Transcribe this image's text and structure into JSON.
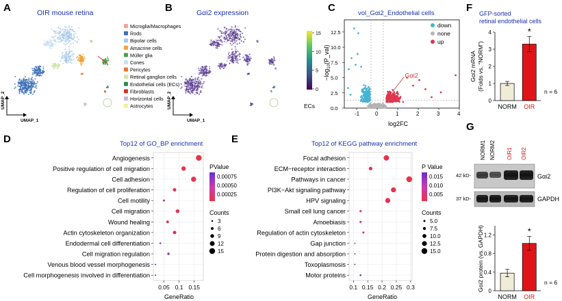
{
  "panels": {
    "A": {
      "letter": "A",
      "title": "OIR mouse retina",
      "axis_x": "UMAP_1",
      "axis_y": "UMAP_2"
    },
    "B": {
      "letter": "B",
      "title": "Gαi2 expression",
      "axis_x": "UMAP_1",
      "axis_y": "UMAP_2",
      "colorbar_ticks": [
        "15",
        "10",
        "5",
        "0"
      ],
      "ec_label": "ECs"
    },
    "C": {
      "letter": "C"
    },
    "D": {
      "letter": "D"
    },
    "E": {
      "letter": "E"
    },
    "F": {
      "letter": "F",
      "title_lines": [
        "GFP-sorted",
        "retinal endothelial cells"
      ]
    },
    "G": {
      "letter": "G",
      "lanes": [
        "NORM1",
        "NORM2",
        "OIR1",
        "OIR2"
      ],
      "markers": [
        "42 kD-",
        "37 kD-"
      ],
      "bands": [
        "Gαi2",
        "GAPDH"
      ]
    }
  },
  "legend_A": {
    "items": [
      {
        "label": "Microglia/Macrophages",
        "color": "#f2a49a"
      },
      {
        "label": "Rods",
        "color": "#3b6fb6"
      },
      {
        "label": "Bipolar cells",
        "color": "#a9c9e8"
      },
      {
        "label": "Amacrine cells",
        "color": "#f0a33a"
      },
      {
        "label": "Müller glia",
        "color": "#4da04a"
      },
      {
        "label": "Cones",
        "color": "#c9e0f2"
      },
      {
        "label": "Pericytes",
        "color": "#e8772e"
      },
      {
        "label": "Retinal ganglion cells",
        "color": "#cfe6a6"
      },
      {
        "label": "Endothelial cells (ECs)",
        "color": "#2f8a52"
      },
      {
        "label": "Fibroblasts",
        "color": "#d6342c"
      },
      {
        "label": "Horizontal cells",
        "color": "#c9b7d9"
      },
      {
        "label": "Astrocytes",
        "color": "#f6ee9a"
      }
    ]
  },
  "chart_data": [
    {
      "id": "volcano",
      "type": "scatter",
      "title": "vol_Gαi2_Endothelial cells",
      "xlabel": "log2FC",
      "ylabel_parts": {
        "pre": "−log",
        "sub": "10",
        "post": "(P_val)"
      },
      "xlim": [
        -1.6,
        4.0
      ],
      "ylim": [
        0,
        14.5
      ],
      "xticks": [
        "-1",
        "0",
        "1",
        "2",
        "3",
        "4"
      ],
      "yticks": [
        "0.0",
        "2.5",
        "5.0",
        "7.5",
        "10.0",
        "12.5"
      ],
      "legend": [
        {
          "label": "down",
          "color": "#41b6d4"
        },
        {
          "label": "none",
          "color": "#b5b5b5"
        },
        {
          "label": "up",
          "color": "#e0354d"
        }
      ],
      "highlight": {
        "label": "Gαi2",
        "x": 0.75,
        "y": 5.5
      },
      "outliers": [
        {
          "x": -1.12,
          "y": 13.1,
          "g": "down"
        },
        {
          "x": -0.92,
          "y": 12.3,
          "g": "down"
        },
        {
          "x": -1.25,
          "y": 8.2,
          "g": "down"
        },
        {
          "x": -0.95,
          "y": 8.9,
          "g": "down"
        },
        {
          "x": -1.05,
          "y": 7.1,
          "g": "down"
        },
        {
          "x": -1.38,
          "y": 6.4,
          "g": "down"
        },
        {
          "x": -0.78,
          "y": 6.8,
          "g": "down"
        },
        {
          "x": -1.42,
          "y": 3.3,
          "g": "down"
        },
        {
          "x": -1.3,
          "y": 2.2,
          "g": "down"
        },
        {
          "x": 3.82,
          "y": 5.4,
          "g": "up"
        },
        {
          "x": 2.65,
          "y": 1.8,
          "g": "up"
        },
        {
          "x": 2.05,
          "y": 4.6,
          "g": "up"
        },
        {
          "x": 1.45,
          "y": 5.0,
          "g": "up"
        },
        {
          "x": 2.35,
          "y": 3.1,
          "g": "up"
        },
        {
          "x": 1.75,
          "y": 3.7,
          "g": "up"
        },
        {
          "x": 3.1,
          "y": 2.6,
          "g": "up"
        }
      ]
    },
    {
      "id": "go_bp",
      "type": "scatter",
      "title": "Top12 of GO_BP enrichment",
      "xlabel": "GeneRatio",
      "xlim": [
        0.015,
        0.18
      ],
      "xticks": [
        0.05,
        0.1,
        0.15
      ],
      "categories": [
        "Angiogenesis",
        "Positive regulation of cell migration",
        "Cell adhesion",
        "Regulation of cell proliferation",
        "Cell motility",
        "Cell migration",
        "Wound healing",
        "Actin cytoskeleton organization",
        "Endodermal cell differentiation",
        "Cell migration regulation",
        "Venous blood vessel morphogenesis",
        "Cell morphogenesis involved in differentiation"
      ],
      "gene_ratio": [
        0.165,
        0.115,
        0.148,
        0.085,
        0.05,
        0.095,
        0.062,
        0.085,
        0.038,
        0.065,
        0.022,
        0.022
      ],
      "counts": [
        15,
        11,
        13,
        8,
        4,
        9,
        6,
        8,
        3,
        5,
        2,
        2
      ],
      "pvalue": [
        1e-05,
        2e-05,
        1e-05,
        0.0001,
        0.00045,
        5e-05,
        0.0001,
        0.00012,
        0.00068,
        0.00055,
        0.0009,
        0.0009
      ],
      "legend": {
        "pvalue_title": "PValue",
        "pvalue_ticks": [
          "0.00075",
          "0.00050",
          "0.00025"
        ],
        "counts_title": "Counts",
        "counts_ticks": [
          3,
          6,
          9,
          12,
          15
        ]
      }
    },
    {
      "id": "kegg",
      "type": "scatter",
      "title": "Top12 of KEGG pathway enrichment",
      "xlabel": "GeneRatio",
      "xlim": [
        0.085,
        0.305
      ],
      "xticks": [
        0.1,
        0.15,
        0.2,
        0.25,
        0.3
      ],
      "categories": [
        "Focal adhesion",
        "ECM−receptor interaction",
        "Pathways in cancer",
        "PI3K−Akt signaling pathway",
        "HPV signaling",
        "Small cell lung cancer",
        "Amoebiasis",
        "Regulation of actin cytoskeleton",
        "Gap junction",
        "Protein digestion and absorption",
        "Toxoplasmosis",
        "Motor proteins"
      ],
      "gene_ratio": [
        0.215,
        0.16,
        0.295,
        0.24,
        0.22,
        0.125,
        0.125,
        0.135,
        0.105,
        0.105,
        0.105,
        0.125
      ],
      "counts": [
        14,
        9,
        15,
        13,
        13,
        5,
        5,
        5,
        3,
        3,
        3,
        4
      ],
      "pvalue": [
        0.0005,
        0.0008,
        0.0002,
        0.0004,
        0.0005,
        0.0015,
        0.0015,
        0.002,
        0.004,
        0.004,
        0.004,
        0.017
      ],
      "legend": {
        "pvalue_title": "P Value",
        "pvalue_ticks": [
          "0.015",
          "0.010",
          "0.005"
        ],
        "counts_title": "Counts",
        "counts_ticks": [
          "5.0",
          "7.5",
          "10.0",
          "12.5",
          "15.0"
        ]
      }
    },
    {
      "id": "mrna",
      "type": "bar",
      "categories": [
        "NORM",
        "OIR"
      ],
      "values": [
        1.0,
        3.3
      ],
      "errors": [
        0.12,
        0.45
      ],
      "ylim": [
        0,
        4
      ],
      "yticks": [
        "0",
        "1",
        "2",
        "3",
        "4"
      ],
      "ylabel_lines": [
        "Gαi2 mRNA",
        "(Folds vs. “NORM”)"
      ],
      "colors": [
        "#efecd8",
        "#e01418"
      ],
      "label_colors": [
        "#000000",
        "#d41414"
      ],
      "significance": "*",
      "n_label": "n = 6"
    },
    {
      "id": "protein",
      "type": "bar",
      "categories": [
        "NORM",
        "OIR"
      ],
      "values": [
        0.38,
        1.02
      ],
      "errors": [
        0.08,
        0.15
      ],
      "ylim": [
        0,
        1.4
      ],
      "yticks": [
        "0",
        "0.4",
        "0.8",
        "1.2"
      ],
      "ylabel": "Gαi2 protein (vs. GAPDH)",
      "colors": [
        "#efecd8",
        "#e01418"
      ],
      "label_colors": [
        "#000000",
        "#d41414"
      ],
      "significance": "*",
      "n_label": "n = 6"
    }
  ]
}
